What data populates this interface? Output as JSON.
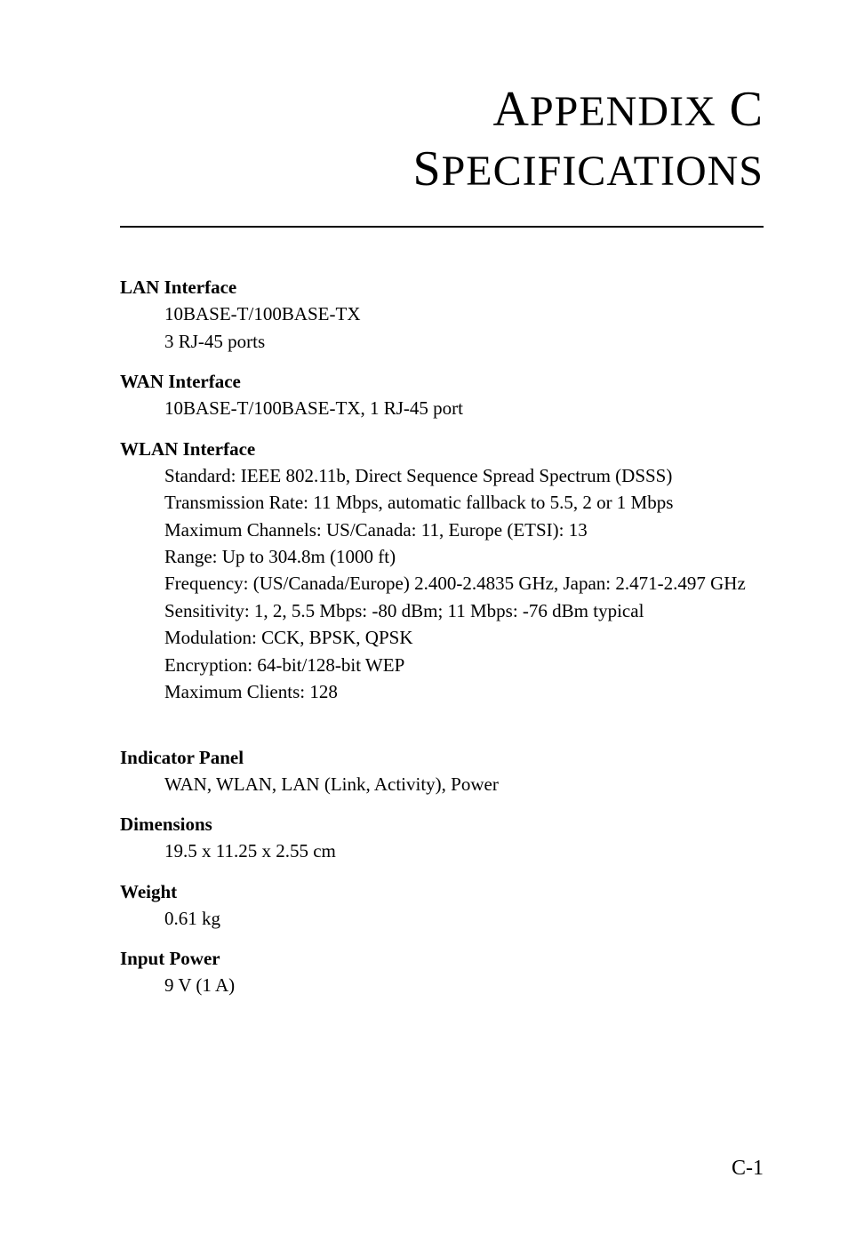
{
  "title": {
    "line1_cap1": "A",
    "line1_rest1": "PPENDIX",
    "line1_cap2": " C",
    "line2_cap1": "S",
    "line2_rest1": "PECIFICATIONS"
  },
  "sections": {
    "lan": {
      "label": "LAN Interface",
      "lines": [
        "10BASE-T/100BASE-TX",
        "3 RJ-45 ports"
      ]
    },
    "wan": {
      "label": "WAN Interface",
      "lines": [
        "10BASE-T/100BASE-TX, 1 RJ-45 port"
      ]
    },
    "wlan": {
      "label": "WLAN Interface",
      "lines": [
        "Standard: IEEE 802.11b, Direct Sequence Spread Spectrum (DSSS)",
        "Transmission Rate: 11 Mbps, automatic fallback to 5.5, 2 or 1 Mbps",
        "Maximum Channels: US/Canada: 11, Europe (ETSI): 13",
        "Range: Up to 304.8m (1000 ft)",
        "Frequency: (US/Canada/Europe) 2.400-2.4835 GHz, Japan: 2.471-2.497 GHz",
        "Sensitivity: 1, 2, 5.5 Mbps: -80 dBm; 11 Mbps: -76 dBm typical",
        "Modulation: CCK, BPSK, QPSK",
        "Encryption: 64-bit/128-bit WEP",
        "Maximum Clients: 128"
      ]
    },
    "indicator": {
      "label": "Indicator Panel",
      "lines": [
        "WAN, WLAN, LAN (Link, Activity), Power"
      ]
    },
    "dimensions": {
      "label": "Dimensions",
      "lines": [
        "19.5 x 11.25 x 2.55 cm"
      ]
    },
    "weight": {
      "label": "Weight",
      "lines": [
        "0.61 kg"
      ]
    },
    "power": {
      "label": "Input Power",
      "lines": [
        "9 V (1 A)"
      ]
    }
  },
  "page_number": "C-1"
}
